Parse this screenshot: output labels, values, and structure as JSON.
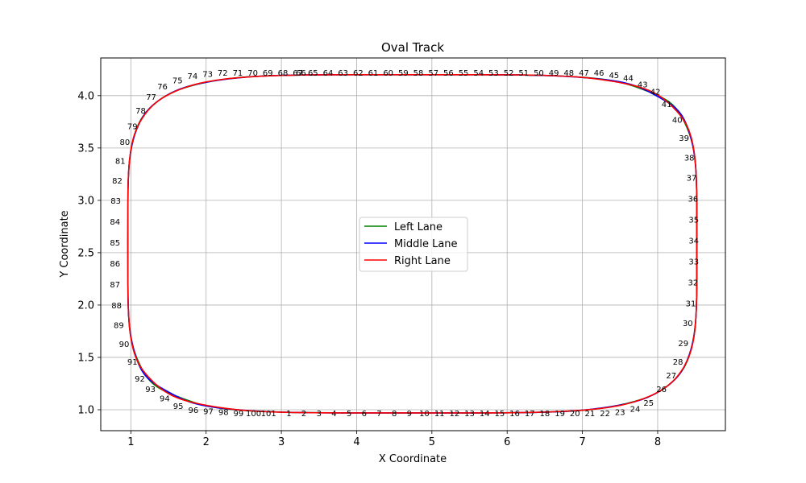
{
  "chart_data": {
    "type": "line",
    "title": "Oval Track",
    "xlabel": "X Coordinate",
    "ylabel": "Y Coordinate",
    "xlim": [
      0.6,
      8.9
    ],
    "ylim": [
      0.8,
      4.36
    ],
    "xticks": [
      1,
      2,
      3,
      4,
      5,
      6,
      7,
      8
    ],
    "yticks": [
      "1.0",
      "1.5",
      "2.0",
      "2.5",
      "3.0",
      "3.5",
      "4.0"
    ],
    "grid": true,
    "legend": {
      "position": "center",
      "entries": [
        "Left Lane",
        "Middle Lane",
        "Right Lane"
      ]
    },
    "colors": {
      "Left Lane": "#008000",
      "Middle Lane": "#0000ff",
      "Right Lane": "#ff0000"
    },
    "point_labels": [
      {
        "t": "1",
        "x": 3.1,
        "y": 0.97
      },
      {
        "t": "2",
        "x": 3.3,
        "y": 0.97
      },
      {
        "t": "3",
        "x": 3.5,
        "y": 0.97
      },
      {
        "t": "4",
        "x": 3.7,
        "y": 0.97
      },
      {
        "t": "5",
        "x": 3.9,
        "y": 0.97
      },
      {
        "t": "6",
        "x": 4.1,
        "y": 0.97
      },
      {
        "t": "7",
        "x": 4.3,
        "y": 0.97
      },
      {
        "t": "8",
        "x": 4.5,
        "y": 0.97
      },
      {
        "t": "9",
        "x": 4.7,
        "y": 0.97
      },
      {
        "t": "10",
        "x": 4.9,
        "y": 0.97
      },
      {
        "t": "11",
        "x": 5.1,
        "y": 0.97
      },
      {
        "t": "12",
        "x": 5.3,
        "y": 0.97
      },
      {
        "t": "13",
        "x": 5.5,
        "y": 0.97
      },
      {
        "t": "14",
        "x": 5.7,
        "y": 0.97
      },
      {
        "t": "15",
        "x": 5.9,
        "y": 0.97
      },
      {
        "t": "16",
        "x": 6.1,
        "y": 0.97
      },
      {
        "t": "17",
        "x": 6.3,
        "y": 0.97
      },
      {
        "t": "18",
        "x": 6.5,
        "y": 0.97
      },
      {
        "t": "19",
        "x": 6.7,
        "y": 0.97
      },
      {
        "t": "20",
        "x": 6.9,
        "y": 0.97
      },
      {
        "t": "21",
        "x": 7.1,
        "y": 0.97
      },
      {
        "t": "22",
        "x": 7.3,
        "y": 0.97
      },
      {
        "t": "23",
        "x": 7.5,
        "y": 0.98
      },
      {
        "t": "24",
        "x": 7.7,
        "y": 1.01
      },
      {
        "t": "25",
        "x": 7.88,
        "y": 1.07
      },
      {
        "t": "26",
        "x": 8.05,
        "y": 1.2
      },
      {
        "t": "27",
        "x": 8.18,
        "y": 1.33
      },
      {
        "t": "28",
        "x": 8.27,
        "y": 1.46
      },
      {
        "t": "29",
        "x": 8.34,
        "y": 1.64
      },
      {
        "t": "30",
        "x": 8.4,
        "y": 1.83
      },
      {
        "t": "31",
        "x": 8.44,
        "y": 2.02
      },
      {
        "t": "32",
        "x": 8.47,
        "y": 2.22
      },
      {
        "t": "33",
        "x": 8.48,
        "y": 2.42
      },
      {
        "t": "34",
        "x": 8.48,
        "y": 2.62
      },
      {
        "t": "35",
        "x": 8.48,
        "y": 2.82
      },
      {
        "t": "36",
        "x": 8.47,
        "y": 3.02
      },
      {
        "t": "37",
        "x": 8.45,
        "y": 3.22
      },
      {
        "t": "38",
        "x": 8.42,
        "y": 3.41
      },
      {
        "t": "39",
        "x": 8.35,
        "y": 3.6
      },
      {
        "t": "40",
        "x": 8.26,
        "y": 3.77
      },
      {
        "t": "41",
        "x": 8.12,
        "y": 3.92
      },
      {
        "t": "42",
        "x": 7.97,
        "y": 4.04
      },
      {
        "t": "43",
        "x": 7.8,
        "y": 4.11
      },
      {
        "t": "44",
        "x": 7.61,
        "y": 4.17
      },
      {
        "t": "45",
        "x": 7.42,
        "y": 4.2
      },
      {
        "t": "46",
        "x": 7.22,
        "y": 4.22
      },
      {
        "t": "47",
        "x": 7.02,
        "y": 4.22
      },
      {
        "t": "48",
        "x": 6.82,
        "y": 4.22
      },
      {
        "t": "49",
        "x": 6.62,
        "y": 4.22
      },
      {
        "t": "50",
        "x": 6.42,
        "y": 4.22
      },
      {
        "t": "51",
        "x": 6.22,
        "y": 4.22
      },
      {
        "t": "52",
        "x": 6.02,
        "y": 4.22
      },
      {
        "t": "53",
        "x": 5.82,
        "y": 4.22
      },
      {
        "t": "54",
        "x": 5.62,
        "y": 4.22
      },
      {
        "t": "55",
        "x": 5.42,
        "y": 4.22
      },
      {
        "t": "56",
        "x": 5.22,
        "y": 4.22
      },
      {
        "t": "57",
        "x": 5.02,
        "y": 4.22
      },
      {
        "t": "58",
        "x": 4.82,
        "y": 4.22
      },
      {
        "t": "59",
        "x": 4.62,
        "y": 4.22
      },
      {
        "t": "60",
        "x": 4.42,
        "y": 4.22
      },
      {
        "t": "61",
        "x": 4.22,
        "y": 4.22
      },
      {
        "t": "62",
        "x": 4.02,
        "y": 4.22
      },
      {
        "t": "63",
        "x": 3.82,
        "y": 4.22
      },
      {
        "t": "64",
        "x": 3.62,
        "y": 4.22
      },
      {
        "t": "65",
        "x": 3.42,
        "y": 4.22
      },
      {
        "t": "66",
        "x": 3.26,
        "y": 4.22
      },
      {
        "t": "67",
        "x": 3.22,
        "y": 4.22
      },
      {
        "t": "68",
        "x": 3.02,
        "y": 4.22
      },
      {
        "t": "69",
        "x": 2.82,
        "y": 4.22
      },
      {
        "t": "70",
        "x": 2.62,
        "y": 4.22
      },
      {
        "t": "71",
        "x": 2.42,
        "y": 4.22
      },
      {
        "t": "72",
        "x": 2.22,
        "y": 4.22
      },
      {
        "t": "73",
        "x": 2.02,
        "y": 4.21
      },
      {
        "t": "74",
        "x": 1.82,
        "y": 4.19
      },
      {
        "t": "75",
        "x": 1.62,
        "y": 4.15
      },
      {
        "t": "76",
        "x": 1.42,
        "y": 4.09
      },
      {
        "t": "77",
        "x": 1.27,
        "y": 3.99
      },
      {
        "t": "78",
        "x": 1.13,
        "y": 3.86
      },
      {
        "t": "79",
        "x": 1.02,
        "y": 3.71
      },
      {
        "t": "80",
        "x": 0.92,
        "y": 3.56
      },
      {
        "t": "81",
        "x": 0.86,
        "y": 3.38
      },
      {
        "t": "82",
        "x": 0.82,
        "y": 3.19
      },
      {
        "t": "83",
        "x": 0.8,
        "y": 3.0
      },
      {
        "t": "84",
        "x": 0.79,
        "y": 2.8
      },
      {
        "t": "85",
        "x": 0.79,
        "y": 2.6
      },
      {
        "t": "86",
        "x": 0.79,
        "y": 2.4
      },
      {
        "t": "87",
        "x": 0.79,
        "y": 2.2
      },
      {
        "t": "88",
        "x": 0.81,
        "y": 2.0
      },
      {
        "t": "89",
        "x": 0.84,
        "y": 1.81
      },
      {
        "t": "90",
        "x": 0.91,
        "y": 1.63
      },
      {
        "t": "91",
        "x": 1.02,
        "y": 1.46
      },
      {
        "t": "92",
        "x": 1.12,
        "y": 1.3
      },
      {
        "t": "93",
        "x": 1.26,
        "y": 1.2
      },
      {
        "t": "94",
        "x": 1.45,
        "y": 1.11
      },
      {
        "t": "95",
        "x": 1.63,
        "y": 1.04
      },
      {
        "t": "96",
        "x": 1.83,
        "y": 1.0
      },
      {
        "t": "97",
        "x": 2.03,
        "y": 0.99
      },
      {
        "t": "98",
        "x": 2.23,
        "y": 0.98
      },
      {
        "t": "99",
        "x": 2.43,
        "y": 0.97
      },
      {
        "t": "100",
        "x": 2.63,
        "y": 0.97
      },
      {
        "t": "101",
        "x": 2.83,
        "y": 0.97
      }
    ]
  }
}
